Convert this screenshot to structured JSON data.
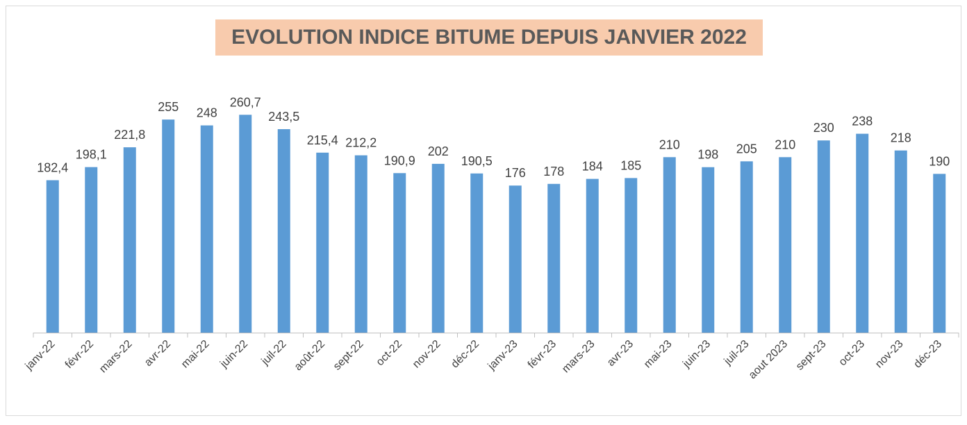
{
  "chart_data": {
    "type": "bar",
    "title": "EVOLUTION INDICE BITUME DEPUIS JANVIER 2022",
    "categories": [
      "janv-22",
      "févr-22",
      "mars-22",
      "avr-22",
      "mai-22",
      "juin-22",
      "juil-22",
      "août-22",
      "sept-22",
      "oct-22",
      "nov-22",
      "déc-22",
      "janv-23",
      "févr-23",
      "mars-23",
      "avr-23",
      "mai-23",
      "juin-23",
      "juil-23",
      "aout 2023",
      "sept-23",
      "oct-23",
      "nov-23",
      "déc-23"
    ],
    "values": [
      182.4,
      198.1,
      221.8,
      255,
      248,
      260.7,
      243.5,
      215.4,
      212.2,
      190.9,
      202,
      190.5,
      176,
      178,
      184,
      185,
      210,
      198,
      205,
      210,
      230,
      238,
      218,
      190
    ],
    "value_labels": [
      "182,4",
      "198,1",
      "221,8",
      "255",
      "248",
      "260,7",
      "243,5",
      "215,4",
      "212,2",
      "190,9",
      "202",
      "190,5",
      "176",
      "178",
      "184",
      "185",
      "210",
      "198",
      "205",
      "210",
      "230",
      "238",
      "218",
      "190"
    ],
    "color": "#5b9bd5",
    "ylim": [
      0,
      300
    ]
  }
}
